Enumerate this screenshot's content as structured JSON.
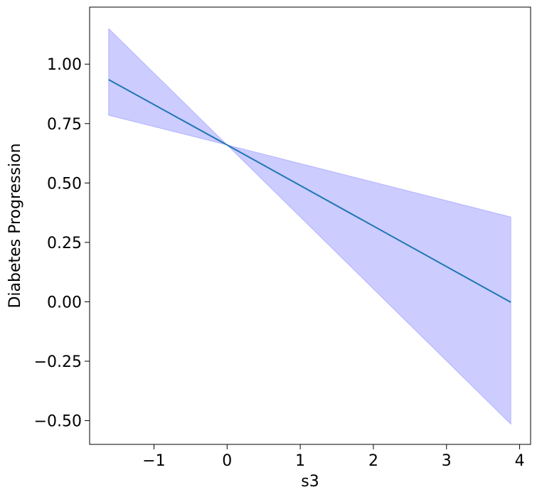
{
  "chart_data": {
    "type": "line",
    "title": "",
    "xlabel": "s3",
    "ylabel": "Diabetes Progression",
    "xlim": [
      -1.88,
      4.15
    ],
    "ylim": [
      -0.6,
      1.24
    ],
    "xticks": [
      -1,
      0,
      1,
      2,
      3,
      4
    ],
    "xtick_labels": [
      "−1",
      "0",
      "1",
      "2",
      "3",
      "4"
    ],
    "yticks": [
      -0.5,
      -0.25,
      0.0,
      0.25,
      0.5,
      0.75,
      1.0
    ],
    "ytick_labels": [
      "−0.50",
      "−0.25",
      "0.00",
      "0.25",
      "0.50",
      "0.75",
      "1.00"
    ],
    "grid": false,
    "legend": false,
    "series": [
      {
        "x": [
          -1.62,
          0.0,
          3.88
        ],
        "y": [
          0.935,
          0.66,
          -0.002
        ],
        "color": "#1f77b4"
      }
    ],
    "band": {
      "x": [
        -1.62,
        0.0,
        3.88
      ],
      "lower": [
        0.785,
        0.66,
        -0.515
      ],
      "upper": [
        1.15,
        0.66,
        0.357
      ],
      "fill": "#0000ff",
      "fill_opacity": 0.2
    }
  }
}
